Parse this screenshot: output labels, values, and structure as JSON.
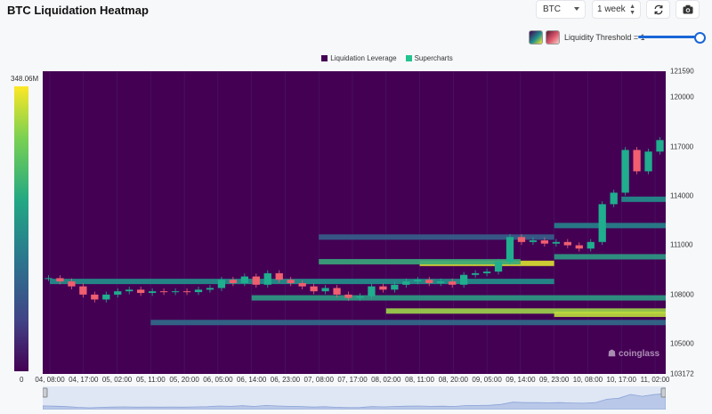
{
  "title": "BTC Liquidation Heatmap",
  "controls": {
    "coin": "BTC",
    "range": "1 week",
    "refresh_icon": "refresh-icon",
    "camera_icon": "camera-icon",
    "threshold_label": "Liquidity Threshold = 1",
    "threshold_value": 1
  },
  "colors": {
    "accent": "#1a66d6",
    "liquidation_leverage": "#440154",
    "supercharts": "#22c38e",
    "candle_up": "#1fae8e",
    "candle_down": "#ef5f6f"
  },
  "legend": {
    "items": [
      {
        "label": "Liquidation Leverage",
        "color": "#440154"
      },
      {
        "label": "Supercharts",
        "color": "#22c38e"
      }
    ]
  },
  "color_scale": {
    "max_label": "348.06M",
    "min_label": "0"
  },
  "watermark": "coinglass",
  "chart_data": {
    "type": "heatmap",
    "title": "",
    "ylim": [
      103172,
      121590
    ],
    "y_ticks": [
      "121590",
      "120000",
      "117000",
      "114000",
      "111000",
      "108000",
      "105000",
      "103172"
    ],
    "y_tick_values": [
      121590,
      120000,
      117000,
      114000,
      111000,
      108000,
      105000,
      103172
    ],
    "x_ticks": [
      "04, 08:00",
      "04, 17:00",
      "05, 02:00",
      "05, 11:00",
      "05, 20:00",
      "06, 05:00",
      "06, 14:00",
      "06, 23:00",
      "07, 08:00",
      "07, 17:00",
      "08, 02:00",
      "08, 11:00",
      "08, 20:00",
      "09, 05:00",
      "09, 14:00",
      "09, 23:00",
      "10, 08:00",
      "10, 17:00",
      "11, 02:00"
    ],
    "price_close": [
      109000,
      108800,
      108500,
      108000,
      107700,
      108000,
      108200,
      108300,
      108100,
      108200,
      108150,
      108200,
      108150,
      108300,
      108400,
      108900,
      108700,
      109100,
      108600,
      109300,
      108900,
      108700,
      108500,
      108200,
      108400,
      108000,
      107800,
      107900,
      108500,
      108300,
      108600,
      108800,
      108900,
      108700,
      108800,
      108600,
      109200,
      109300,
      109400,
      110000,
      111500,
      111200,
      111300,
      111100,
      111200,
      111000,
      110800,
      111200,
      113500,
      114200,
      116800,
      115500,
      116700,
      117400
    ],
    "liquidity_bands": [
      {
        "price": 109900,
        "from": "08, 11:00",
        "to": "09, 23:00",
        "intensity": 0.95
      },
      {
        "price": 110000,
        "from": "07, 08:00",
        "to": "09, 14:00",
        "intensity": 0.6
      },
      {
        "price": 108800,
        "from": "04, 08:00",
        "to": "09, 23:00",
        "intensity": 0.5
      },
      {
        "price": 107800,
        "from": "06, 14:00",
        "to": "11, 02:00",
        "intensity": 0.55
      },
      {
        "price": 107000,
        "from": "08, 02:00",
        "to": "11, 02:00",
        "intensity": 0.85
      },
      {
        "price": 106800,
        "from": "09, 23:00",
        "to": "11, 02:00",
        "intensity": 0.9
      },
      {
        "price": 110300,
        "from": "09, 23:00",
        "to": "11, 02:00",
        "intensity": 0.55
      },
      {
        "price": 112200,
        "from": "09, 23:00",
        "to": "11, 02:00",
        "intensity": 0.45
      },
      {
        "price": 113800,
        "from": "10, 17:00",
        "to": "11, 02:00",
        "intensity": 0.5
      },
      {
        "price": 106300,
        "from": "05, 11:00",
        "to": "11, 02:00",
        "intensity": 0.35
      },
      {
        "price": 111500,
        "from": "07, 08:00",
        "to": "09, 23:00",
        "intensity": 0.3
      }
    ]
  }
}
